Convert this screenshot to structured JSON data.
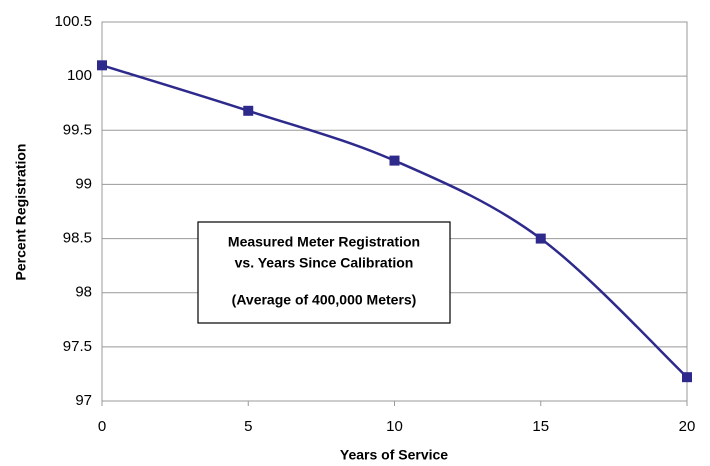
{
  "chart_data": {
    "type": "line",
    "x_label": "Years of Service",
    "y_label": "Percent Registration",
    "annotation": [
      "Measured Meter Registration",
      "vs. Years Since Calibration",
      "(Average of 400,000 Meters)"
    ],
    "x": [
      0,
      5,
      10,
      15,
      20
    ],
    "series": [
      {
        "name": "Percent Registration",
        "color": "#2e2a8c",
        "values": [
          100.1,
          99.68,
          99.22,
          98.5,
          97.22
        ]
      }
    ],
    "xlim": [
      0,
      20
    ],
    "xticks": [
      0,
      5,
      10,
      15,
      20
    ],
    "ylim": [
      97,
      100.5
    ],
    "yticks": [
      97,
      97.5,
      98,
      98.5,
      99,
      99.5,
      100,
      100.5
    ],
    "grid": true,
    "legend": false
  }
}
